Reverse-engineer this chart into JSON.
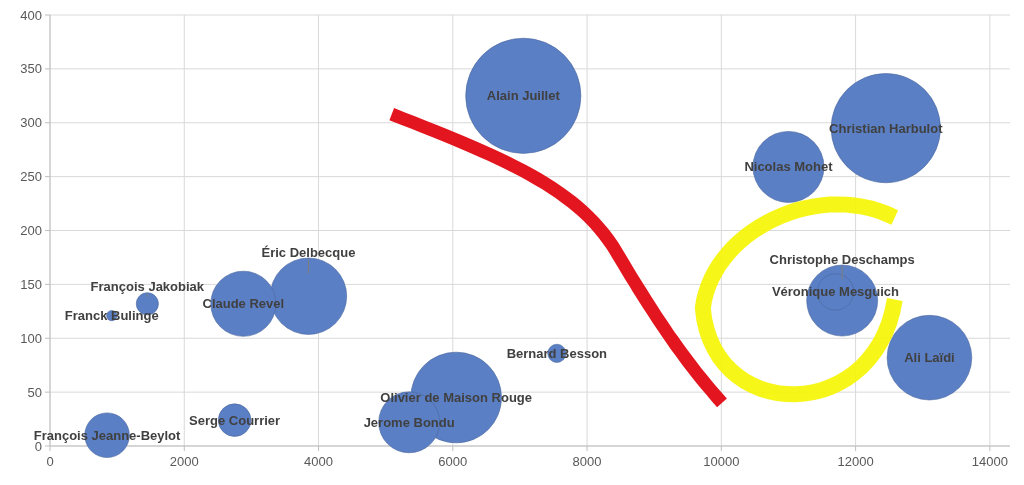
{
  "chart_data": {
    "type": "bubble",
    "xlim": [
      0,
      14300
    ],
    "ylim": [
      0,
      400
    ],
    "xticks": [
      0,
      2000,
      4000,
      6000,
      8000,
      10000,
      12000,
      14000
    ],
    "yticks": [
      0,
      50,
      100,
      150,
      200,
      250,
      300,
      350,
      400
    ],
    "grid": true,
    "series": [
      {
        "name": "Alain Juillet",
        "color": "#5b7fc4",
        "x": [
          7050
        ],
        "values": [
          325
        ],
        "sizes": [
          1
        ]
      },
      {
        "name": "Christian Harbulot",
        "color": "#5b7fc4",
        "x": [
          12450
        ],
        "values": [
          295
        ],
        "sizes": [
          0.9
        ]
      },
      {
        "name": "Olivier de Maison Rouge",
        "color": "#5b7fc4",
        "x": [
          6050
        ],
        "values": [
          45
        ],
        "sizes": [
          0.62
        ]
      },
      {
        "name": "Ali Laïdi",
        "color": "#5b7fc4",
        "x": [
          13100
        ],
        "values": [
          82
        ],
        "sizes": [
          0.54
        ]
      },
      {
        "name": "Éric Delbecque",
        "color": "#5b7fc4",
        "x": [
          3850
        ],
        "values": [
          139
        ],
        "sizes": [
          0.44
        ]
      },
      {
        "name": "Nicolas Mohet",
        "color": "#5b7fc4",
        "x": [
          11000
        ],
        "values": [
          259
        ],
        "sizes": [
          0.38
        ]
      },
      {
        "name": "Christophe Deschamps",
        "color": "#5b7fc4",
        "x": [
          11800
        ],
        "values": [
          135
        ],
        "sizes": [
          0.38
        ]
      },
      {
        "name": "Claude Revel",
        "color": "#5b7fc4",
        "x": [
          2880
        ],
        "values": [
          132
        ],
        "sizes": [
          0.32
        ]
      },
      {
        "name": "Jerome Bondu",
        "color": "#5b7fc4",
        "x": [
          5350
        ],
        "values": [
          22
        ],
        "sizes": [
          0.28
        ]
      },
      {
        "name": "François Jeanne-Beylot",
        "color": "#5b7fc4",
        "x": [
          850
        ],
        "values": [
          10
        ],
        "sizes": [
          0.15
        ]
      },
      {
        "name": "Véronique Mesguich",
        "color": "#5b7fc4",
        "x": [
          11700
        ],
        "values": [
          143
        ],
        "sizes": [
          0.1
        ]
      },
      {
        "name": "Serge Courrier",
        "color": "#5b7fc4",
        "x": [
          2750
        ],
        "values": [
          24
        ],
        "sizes": [
          0.08
        ]
      },
      {
        "name": "François Jakobiak",
        "color": "#5b7fc4",
        "x": [
          1450
        ],
        "values": [
          132
        ],
        "sizes": [
          0.037
        ]
      },
      {
        "name": "Bernard Besson",
        "color": "#5b7fc4",
        "x": [
          7550
        ],
        "values": [
          86
        ],
        "sizes": [
          0.025
        ]
      },
      {
        "name": "Franck Bulinge",
        "color": "#5b7fc4",
        "x": [
          920
        ],
        "values": [
          121
        ],
        "sizes": [
          0.008
        ]
      }
    ]
  }
}
